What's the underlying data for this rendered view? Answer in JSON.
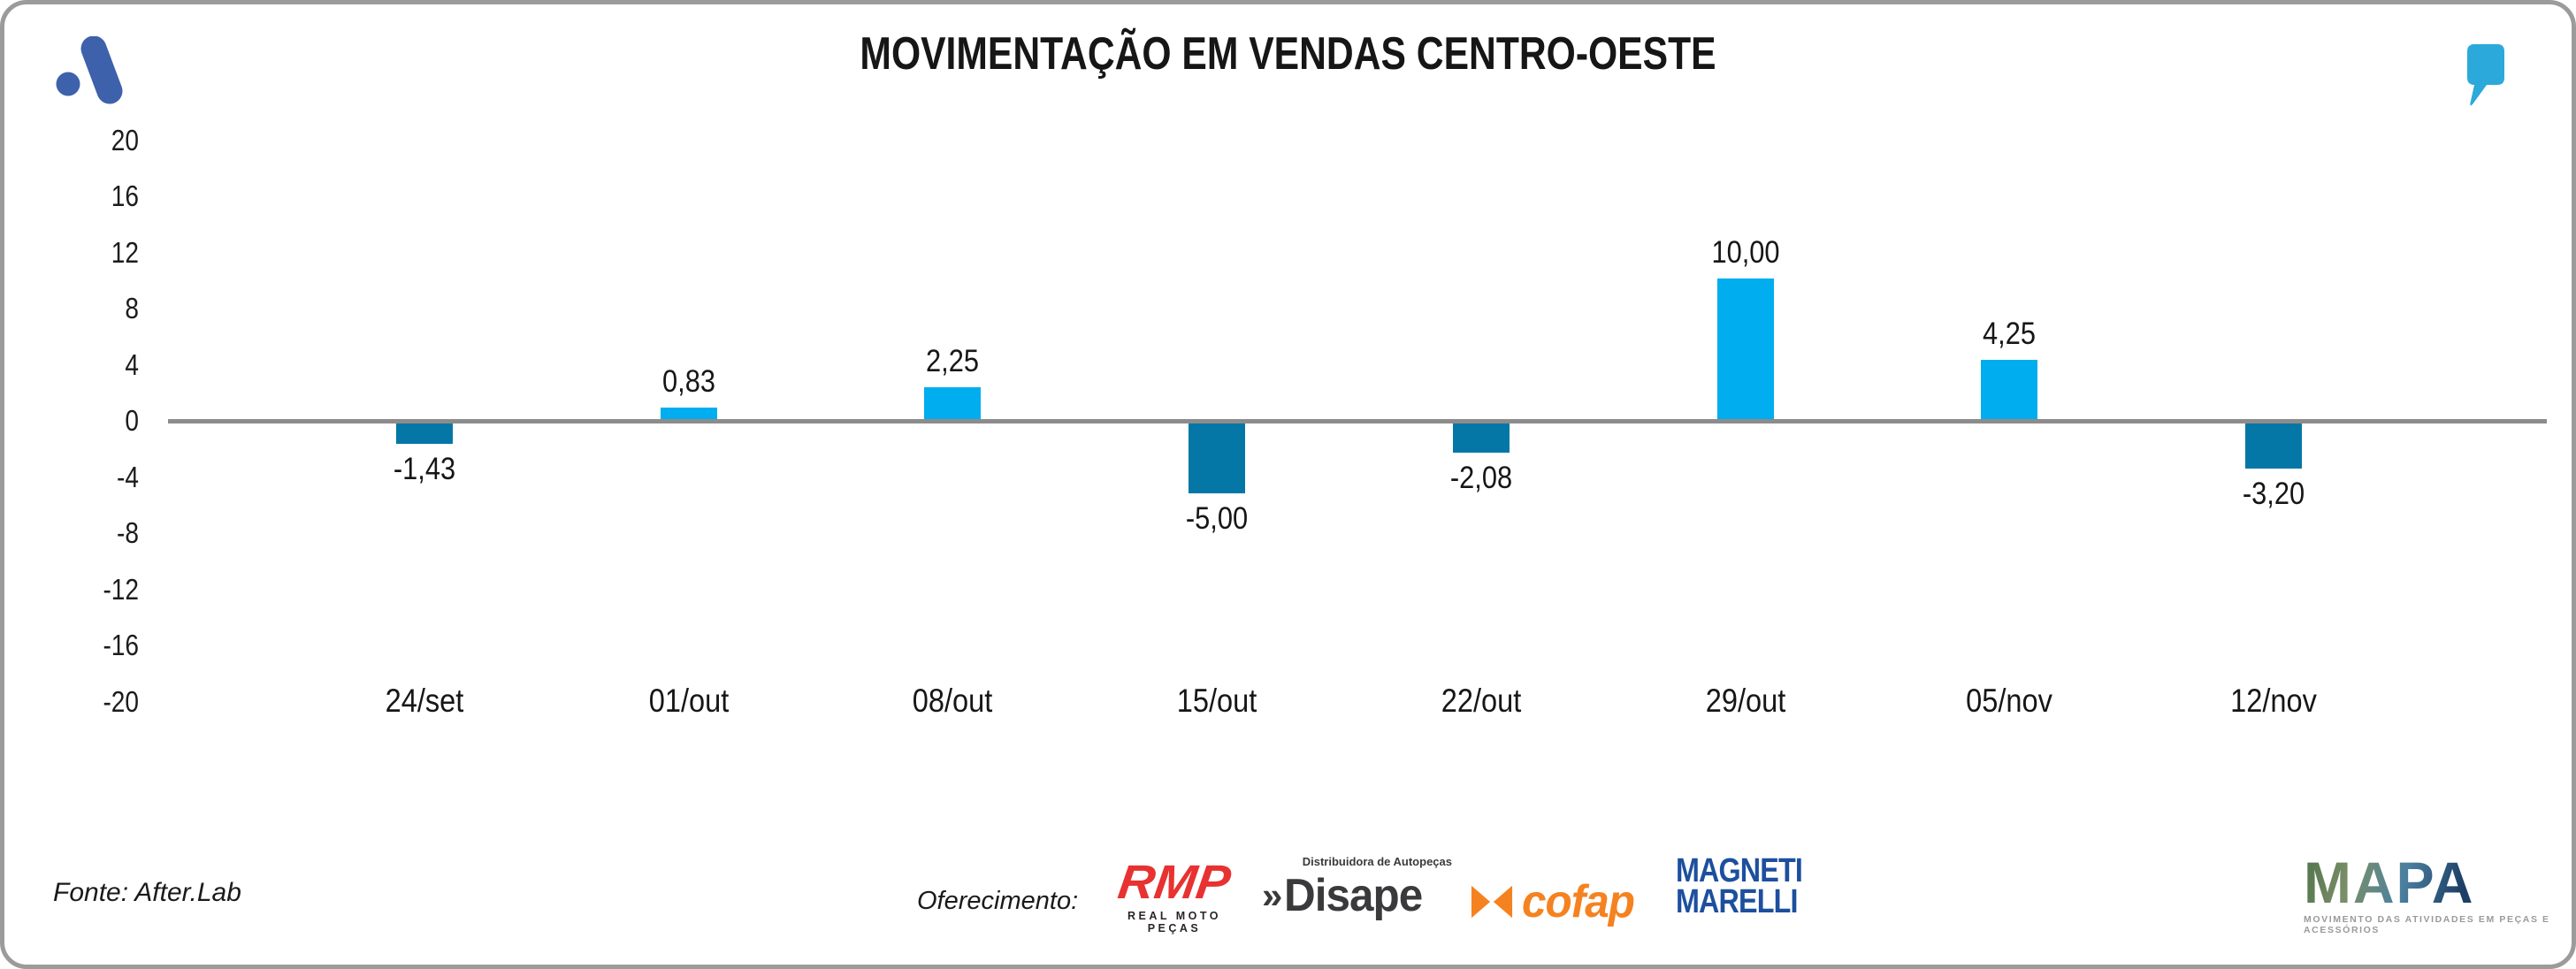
{
  "header": {
    "title": "MOVIMENTAÇÃO EM VENDAS CENTRO-OESTE",
    "icons": [
      {
        "name": "afterlab-logo-icon",
        "color": "#3E61AC"
      },
      {
        "name": "quote-icon",
        "color": "#2BA9DB"
      }
    ]
  },
  "chart_data": {
    "type": "bar",
    "title": "MOVIMENTAÇÃO EM VENDAS CENTRO-OESTE",
    "categories": [
      "24/set",
      "01/out",
      "08/out",
      "15/out",
      "22/out",
      "29/out",
      "05/nov",
      "12/nov"
    ],
    "values": [
      -1.43,
      0.83,
      2.25,
      -5.0,
      -2.08,
      10.0,
      4.25,
      -3.2
    ],
    "value_labels": [
      "-1,43",
      "0,83",
      "2,25",
      "-5,00",
      "-2,08",
      "10,00",
      "4,25",
      "-3,20"
    ],
    "y_ticks": [
      20,
      16,
      12,
      8,
      4,
      0,
      -4,
      -8,
      -12,
      -16,
      -20
    ],
    "ylim": [
      -20,
      20
    ],
    "xlabel": "",
    "ylabel": "",
    "grid": false,
    "legend_position": "none",
    "positive_color": "#00ADEF",
    "negative_color": "#0477A6",
    "baseline_color": "#8C8C8C"
  },
  "footer": {
    "source": "Fonte: After.Lab",
    "offering_label": "Oferecimento:",
    "sponsors": [
      {
        "id": "rmp",
        "main": "RMP",
        "sub": "REAL MOTO PEÇAS",
        "color": "#E73231"
      },
      {
        "id": "disape",
        "prefix": "»",
        "main": "Disape",
        "sub": "Distribuidora de Autopeças",
        "color": "#3A3A3C"
      },
      {
        "id": "cofap",
        "main": "cofap",
        "color": "#F58220"
      },
      {
        "id": "magneti-marelli",
        "line1": "MAGNETI",
        "line2": "MARELLI",
        "color": "#1D4F9E"
      }
    ],
    "mapa": {
      "main": "MAPA",
      "sub": "MOVIMENTO DAS ATIVIDADES EM PEÇAS E ACESSÓRIOS"
    }
  }
}
